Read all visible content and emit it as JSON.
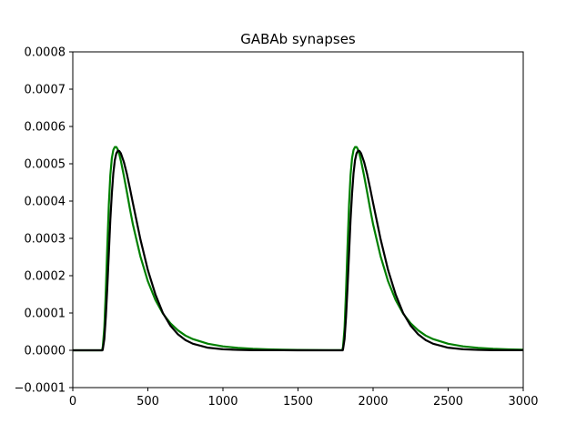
{
  "chart_data": {
    "type": "line",
    "title": "GABAb synapses",
    "xlabel": "",
    "ylabel": "",
    "xlim": [
      0,
      3000
    ],
    "ylim": [
      -0.0001,
      0.0008
    ],
    "grid": false,
    "x_ticks": [
      0,
      500,
      1000,
      1500,
      2000,
      2500,
      3000
    ],
    "x_tick_labels": [
      "0",
      "500",
      "1000",
      "1500",
      "2000",
      "2500",
      "3000"
    ],
    "y_ticks": [
      -0.0001,
      0,
      0.0001,
      0.0002,
      0.0003,
      0.0004,
      0.0005,
      0.0006,
      0.0007,
      0.0008
    ],
    "y_tick_labels": [
      "−0.0001",
      "0.0000",
      "0.0001",
      "0.0002",
      "0.0003",
      "0.0004",
      "0.0005",
      "0.0006",
      "0.0007",
      "0.0008"
    ],
    "series": [
      {
        "color": "#008000",
        "x": [
          0,
          195,
          200,
          210,
          220,
          230,
          240,
          250,
          260,
          270,
          280,
          290,
          300,
          310,
          320,
          340,
          360,
          380,
          400,
          450,
          500,
          550,
          600,
          650,
          700,
          750,
          800,
          900,
          1000,
          1100,
          1200,
          1300,
          1400,
          1500,
          1600,
          1700,
          1795,
          1800,
          1810,
          1820,
          1830,
          1840,
          1850,
          1860,
          1870,
          1880,
          1890,
          1900,
          1910,
          1920,
          1940,
          1960,
          1980,
          2000,
          2050,
          2100,
          2150,
          2200,
          2250,
          2300,
          2350,
          2400,
          2500,
          2600,
          2700,
          2800,
          2900,
          3000
        ],
        "y": [
          0,
          0,
          1e-05,
          6e-05,
          0.00016,
          0.00028,
          0.00039,
          0.00047,
          0.000515,
          0.000537,
          0.000545,
          0.000545,
          0.000538,
          0.000525,
          0.000508,
          0.000468,
          0.000425,
          0.00038,
          0.000338,
          0.000252,
          0.000185,
          0.000135,
          9.85e-05,
          7.25e-05,
          5.35e-05,
          3.95e-05,
          3e-05,
          1.75e-05,
          1.05e-05,
          6.5e-06,
          4e-06,
          2.5e-06,
          1.5e-06,
          1e-06,
          6e-07,
          4e-07,
          3e-07,
          1e-05,
          6e-05,
          0.00016,
          0.00028,
          0.00039,
          0.00047,
          0.000515,
          0.000537,
          0.000545,
          0.000545,
          0.000538,
          0.000525,
          0.000508,
          0.000468,
          0.000425,
          0.00038,
          0.000338,
          0.000252,
          0.000185,
          0.000135,
          9.85e-05,
          7.25e-05,
          5.35e-05,
          3.95e-05,
          3e-05,
          1.75e-05,
          1.05e-05,
          6.5e-06,
          4e-06,
          2.5e-06,
          1.5e-06
        ]
      },
      {
        "color": "#000000",
        "x": [
          0,
          198,
          200,
          210,
          220,
          230,
          240,
          250,
          260,
          270,
          280,
          290,
          300,
          310,
          320,
          340,
          360,
          380,
          400,
          450,
          500,
          550,
          600,
          650,
          700,
          750,
          800,
          900,
          1000,
          1100,
          1200,
          1300,
          1400,
          1500,
          1600,
          1700,
          1798,
          1800,
          1810,
          1820,
          1830,
          1840,
          1850,
          1860,
          1870,
          1880,
          1890,
          1900,
          1910,
          1920,
          1940,
          1960,
          1980,
          2000,
          2050,
          2100,
          2150,
          2200,
          2250,
          2300,
          2350,
          2400,
          2500,
          2600,
          2700,
          2800,
          2900,
          3000
        ],
        "y": [
          0,
          0,
          3e-06,
          3e-05,
          9e-05,
          0.00017,
          0.00026,
          0.00035,
          0.00042,
          0.000475,
          0.00051,
          0.000528,
          0.000535,
          0.000534,
          0.000528,
          0.000505,
          0.000473,
          0.000435,
          0.000395,
          0.000298,
          0.000215,
          0.00015,
          0.0001,
          6.6e-05,
          4.3e-05,
          2.75e-05,
          1.75e-05,
          7e-06,
          2.8e-06,
          1.1e-06,
          4e-07,
          2e-07,
          1e-07,
          0,
          0,
          0,
          0,
          3e-06,
          3e-05,
          9e-05,
          0.00017,
          0.00026,
          0.00035,
          0.00042,
          0.000475,
          0.00051,
          0.000528,
          0.000535,
          0.000534,
          0.000528,
          0.000505,
          0.000473,
          0.000435,
          0.000395,
          0.000298,
          0.000215,
          0.00015,
          0.0001,
          6.6e-05,
          4.3e-05,
          2.75e-05,
          1.75e-05,
          7e-06,
          2.8e-06,
          1.1e-06,
          4e-07,
          2e-07,
          1e-07
        ]
      }
    ]
  }
}
